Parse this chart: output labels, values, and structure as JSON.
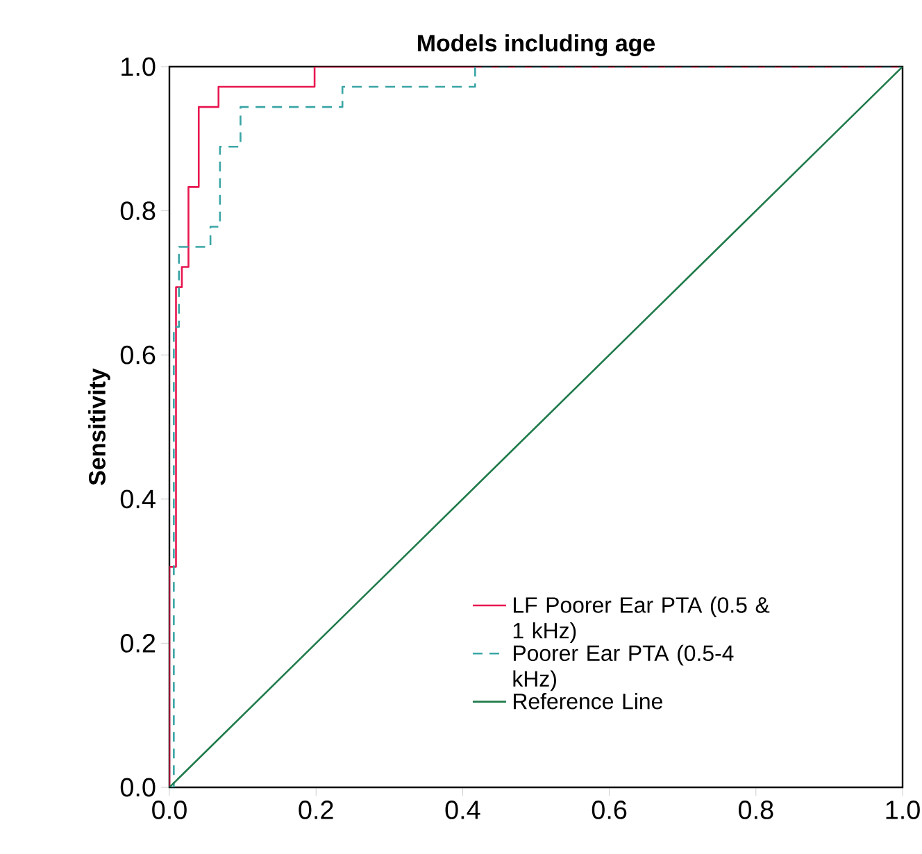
{
  "chart_data": {
    "type": "line",
    "title": "Models including age",
    "ylabel": "Sensitivity",
    "xlim": [
      0,
      1
    ],
    "ylim": [
      0,
      1
    ],
    "xticks": [
      {
        "value": 0,
        "label": "0.0"
      },
      0.2,
      0.4,
      0.6,
      0.8,
      {
        "value": 1,
        "label": "1.0"
      }
    ],
    "yticks": [
      {
        "value": 0,
        "label": "0.0"
      },
      0.2,
      0.4,
      0.6,
      0.8,
      {
        "value": 1,
        "label": "1.0"
      }
    ],
    "legend": "bottom right",
    "series": [
      {
        "name": "LF Poorer Ear PTA (0.5 & 1 kHz)",
        "color": "#e8174f",
        "line_style": "solid",
        "x": [
          0,
          0,
          0.009,
          0.009,
          0.017,
          0.017,
          0.026,
          0.026,
          0.04,
          0.04,
          0.067,
          0.067,
          0.198,
          0.198,
          1
        ],
        "values": [
          0,
          0.306,
          0.306,
          0.694,
          0.694,
          0.722,
          0.722,
          0.833,
          0.833,
          0.944,
          0.944,
          0.972,
          0.972,
          1,
          1
        ]
      },
      {
        "name": "Poorer Ear PTA (0.5-4 kHz)",
        "color": "#3aa5a5",
        "line_style": "dashed",
        "x": [
          0,
          0.006,
          0.006,
          0.013,
          0.013,
          0.056,
          0.056,
          0.069,
          0.069,
          0.097,
          0.097,
          0.236,
          0.236,
          0.417,
          0.417,
          1
        ],
        "values": [
          0,
          0,
          0.639,
          0.639,
          0.75,
          0.75,
          0.778,
          0.778,
          0.889,
          0.889,
          0.944,
          0.944,
          0.972,
          0.972,
          1,
          1
        ]
      },
      {
        "name": "Reference Line",
        "color": "#1f7a4a",
        "line_style": "solid",
        "x": [
          0,
          1
        ],
        "values": [
          0,
          1
        ]
      }
    ]
  }
}
